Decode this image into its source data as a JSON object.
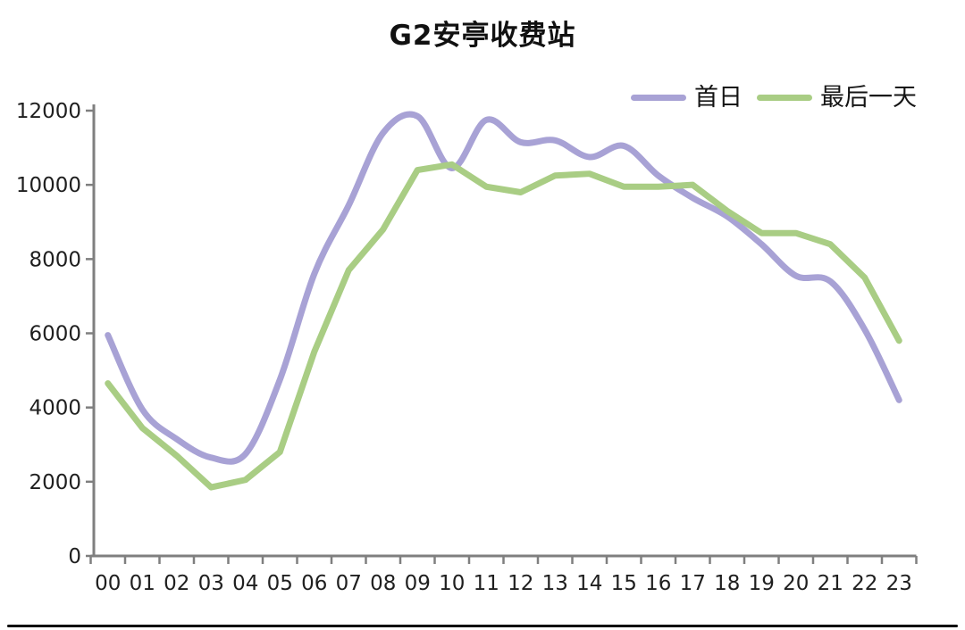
{
  "title": "G2安亭收费站",
  "chart_data": {
    "type": "line",
    "title": "G2安亭收费站",
    "categories": [
      "00",
      "01",
      "02",
      "03",
      "04",
      "05",
      "06",
      "07",
      "08",
      "09",
      "10",
      "11",
      "12",
      "13",
      "14",
      "15",
      "16",
      "17",
      "18",
      "19",
      "20",
      "21",
      "22",
      "23"
    ],
    "series": [
      {
        "name": "首日",
        "color": "#a8a2d5",
        "style": "smooth",
        "values": [
          5950,
          3950,
          3150,
          2650,
          2750,
          4750,
          7600,
          9450,
          11400,
          11850,
          10450,
          11750,
          11150,
          11200,
          10750,
          11050,
          10250,
          9650,
          9150,
          8400,
          7550,
          7400,
          6100,
          4200
        ]
      },
      {
        "name": "最后一天",
        "color": "#a9cd84",
        "style": "polyline",
        "values": [
          4650,
          3450,
          2700,
          1850,
          2050,
          2800,
          5500,
          7700,
          8800,
          10400,
          10550,
          9950,
          9800,
          10250,
          10300,
          9950,
          9950,
          10000,
          9300,
          8700,
          8700,
          8400,
          7500,
          5800
        ]
      }
    ],
    "xlabel": "",
    "ylabel": "",
    "ylim": [
      0,
      12000
    ],
    "yticks": [
      0,
      2000,
      4000,
      6000,
      8000,
      10000,
      12000
    ],
    "grid": false,
    "legend_position": "top-right",
    "axis_color": "#7f7f7f",
    "label_color": "#1f1f1f"
  },
  "footer": {
    "divider_color": "#000000"
  }
}
